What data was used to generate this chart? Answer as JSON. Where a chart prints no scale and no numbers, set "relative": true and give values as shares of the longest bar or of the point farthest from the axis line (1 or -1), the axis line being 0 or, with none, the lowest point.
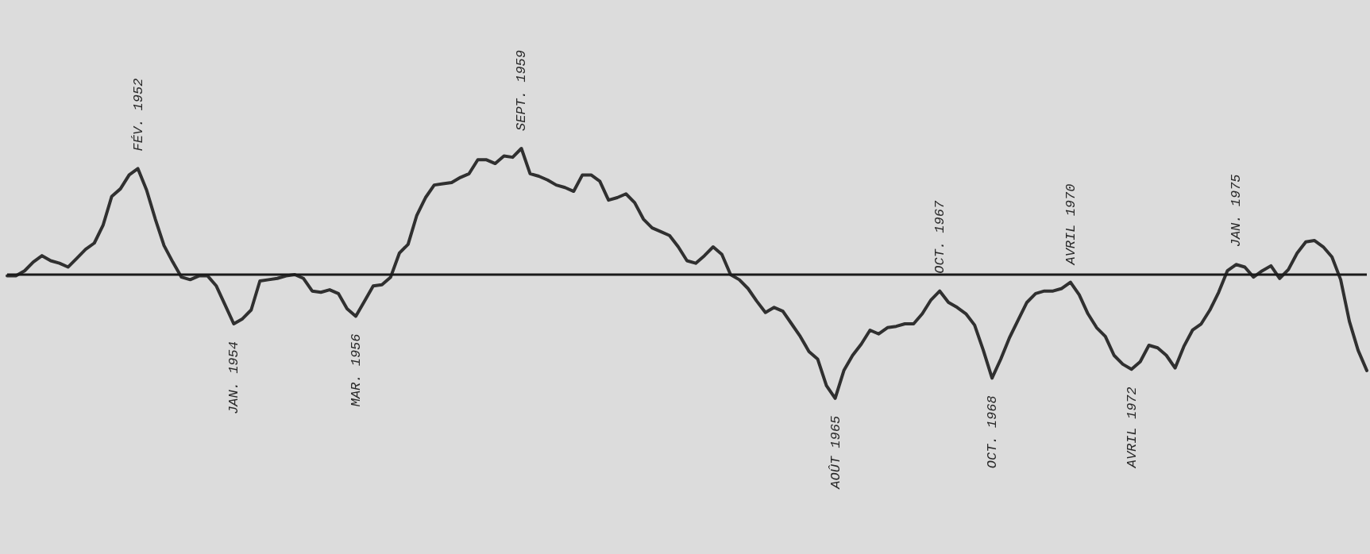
{
  "chart_data": {
    "type": "line",
    "relative": true,
    "categories": [
      null,
      null,
      null,
      null,
      null,
      null,
      null,
      null,
      null,
      null,
      null,
      null,
      null,
      null,
      null,
      null,
      null,
      null,
      null,
      null,
      null,
      null,
      null,
      null,
      null,
      null,
      null,
      null,
      null,
      null,
      null,
      null,
      null,
      null,
      null,
      null,
      null,
      null,
      null,
      null,
      null,
      null,
      null,
      null,
      null,
      null,
      null,
      null,
      null,
      null,
      null,
      null,
      null,
      null,
      null,
      null,
      null,
      null,
      null,
      null,
      null,
      null,
      null,
      null,
      null,
      null,
      null,
      null,
      null,
      null,
      null,
      null,
      null,
      null,
      null,
      null,
      null,
      null,
      null,
      null,
      null,
      null,
      null,
      null,
      null,
      null,
      null,
      null,
      null,
      null,
      null,
      null,
      null,
      null,
      null,
      null,
      null,
      null,
      null,
      null,
      null,
      null,
      null,
      null,
      null,
      null,
      null,
      null,
      null,
      null,
      null,
      null,
      null,
      null,
      null,
      null,
      null,
      null,
      null,
      null,
      null,
      null,
      null,
      null,
      null,
      null,
      null,
      null,
      null,
      null,
      null,
      null,
      null,
      null,
      null,
      null,
      null,
      null,
      null,
      null,
      null,
      null,
      null,
      null,
      null,
      null,
      null,
      null,
      null,
      null,
      null,
      null,
      null,
      null,
      null,
      null,
      null
    ],
    "series": [
      {
        "color": "#303030",
        "values": [
          -0.01,
          -0.01,
          0.03,
          0.1,
          0.15,
          0.11,
          0.09,
          0.06,
          0.13,
          0.2,
          0.25,
          0.39,
          0.62,
          0.68,
          0.79,
          0.84,
          0.67,
          0.44,
          0.23,
          0.1,
          -0.02,
          -0.04,
          -0.01,
          -0.01,
          -0.09,
          -0.24,
          -0.39,
          -0.35,
          -0.28,
          -0.05,
          -0.04,
          -0.03,
          -0.01,
          0.0,
          -0.03,
          -0.13,
          -0.14,
          -0.12,
          -0.15,
          -0.27,
          -0.33,
          -0.21,
          -0.09,
          -0.08,
          -0.02,
          0.17,
          0.24,
          0.47,
          0.61,
          0.71,
          0.72,
          0.73,
          0.77,
          0.8,
          0.91,
          0.91,
          0.88,
          0.94,
          0.93,
          1,
          0.8,
          0.78,
          0.75,
          0.71,
          0.69,
          0.66,
          0.79,
          0.79,
          0.74,
          0.59,
          0.61,
          0.64,
          0.57,
          0.44,
          0.37,
          0.34,
          0.31,
          0.22,
          0.11,
          0.09,
          0.15,
          0.22,
          0.16,
          0.0,
          -0.04,
          -0.11,
          -0.21,
          -0.3,
          -0.26,
          -0.29,
          -0.39,
          -0.49,
          -0.61,
          -0.67,
          -0.88,
          -0.98,
          -0.76,
          -0.64,
          -0.55,
          -0.44,
          -0.47,
          -0.42,
          -0.41,
          -0.39,
          -0.39,
          -0.31,
          -0.2,
          -0.13,
          -0.22,
          -0.26,
          -0.31,
          -0.4,
          -0.6,
          -0.82,
          -0.67,
          -0.5,
          -0.36,
          -0.22,
          -0.15,
          -0.13,
          -0.13,
          -0.11,
          -0.06,
          -0.16,
          -0.31,
          -0.42,
          -0.49,
          -0.64,
          -0.71,
          -0.75,
          -0.69,
          -0.56,
          -0.58,
          -0.64,
          -0.74,
          -0.57,
          -0.44,
          -0.39,
          -0.28,
          -0.14,
          0.03,
          0.08,
          0.06,
          -0.02,
          0.03,
          0.07,
          -0.03,
          0.04,
          0.17,
          0.26,
          0.27,
          0.22,
          0.14,
          -0.04,
          -0.37,
          -0.6,
          -0.76
        ]
      }
    ],
    "annotations": [
      {
        "text": "FÉV. 1952",
        "y": 0.84
      },
      {
        "text": "JAN. 1954",
        "y": -0.39
      },
      {
        "text": "MAR. 1956",
        "y": -0.33
      },
      {
        "text": "SEPT. 1959",
        "y": 1
      },
      {
        "text": "AOÛT 1965",
        "y": -0.98
      },
      {
        "text": "OCT. 1967",
        "y": -0.13
      },
      {
        "text": "OCT. 1968",
        "y": -0.82
      },
      {
        "text": "AVRIL 1970",
        "y": -0.06
      },
      {
        "text": "AVRIL 1972",
        "y": -0.75
      },
      {
        "text": "JAN. 1975",
        "y": 0.08
      }
    ]
  }
}
